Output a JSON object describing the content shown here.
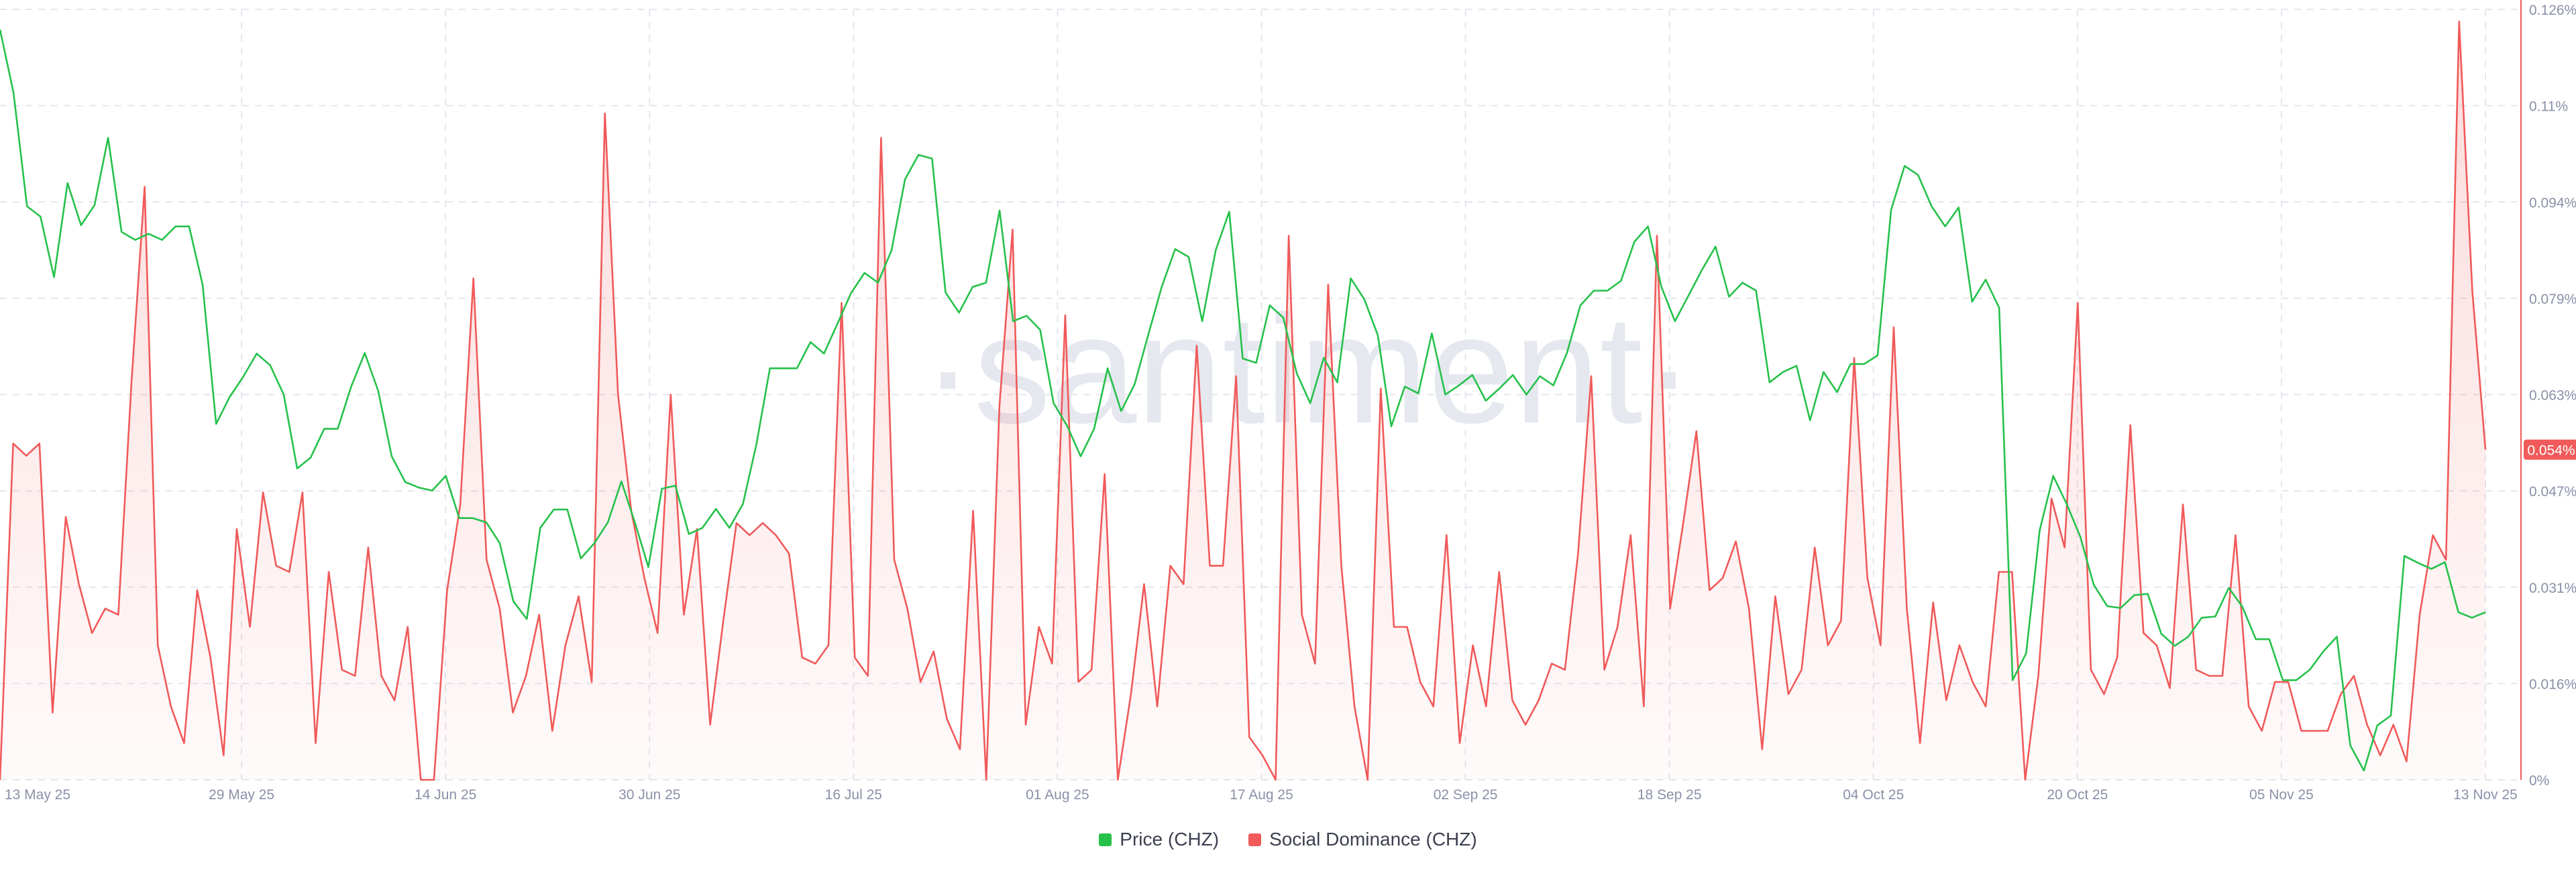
{
  "watermark": "·santiment·",
  "chart_data": {
    "type": "line",
    "x_start": "13 May 25",
    "x_end": "13 Nov 25",
    "x_tick_labels": [
      "13 May 25",
      "29 May 25",
      "14 Jun 25",
      "30 Jun 25",
      "16 Jul 25",
      "01 Aug 25",
      "17 Aug 25",
      "02 Sep 25",
      "18 Sep 25",
      "04 Oct 25",
      "20 Oct 25",
      "05 Nov 25",
      "13 Nov 25"
    ],
    "y_right": {
      "tick_labels": [
        "0%",
        "0.016%",
        "0.031%",
        "0.047%",
        "0.063%",
        "0.079%",
        "0.094%",
        "0.11%",
        "0.126%"
      ],
      "range": [
        0,
        0.126
      ],
      "unit": "%"
    },
    "current_value_label": "0.054%",
    "legend": [
      {
        "name": "Price (CHZ)",
        "color": "#26c14b"
      },
      {
        "name": "Social Dominance (CHZ)",
        "color": "#f05a5a"
      }
    ],
    "series": [
      {
        "name": "Price (CHZ)",
        "color": "#26c14b",
        "axis": "hidden",
        "values": [
          0.1227,
          0.1124,
          0.0938,
          0.0921,
          0.0822,
          0.0976,
          0.0907,
          0.094,
          0.105,
          0.0896,
          0.0883,
          0.0893,
          0.0883,
          0.0905,
          0.0905,
          0.081,
          0.0582,
          0.0626,
          0.0659,
          0.0697,
          0.0678,
          0.063,
          0.0509,
          0.0527,
          0.0574,
          0.0574,
          0.0643,
          0.0698,
          0.0636,
          0.0529,
          0.0487,
          0.0478,
          0.0473,
          0.0497,
          0.0428,
          0.0428,
          0.0421,
          0.0387,
          0.0292,
          0.0263,
          0.0412,
          0.0442,
          0.0442,
          0.0362,
          0.0387,
          0.0421,
          0.0488,
          0.0421,
          0.0348,
          0.0476,
          0.0481,
          0.0402,
          0.0412,
          0.0443,
          0.0412,
          0.0451,
          0.0549,
          0.0673,
          0.0673,
          0.0673,
          0.0716,
          0.0697,
          0.0746,
          0.0796,
          0.0829,
          0.0813,
          0.0866,
          0.0982,
          0.1022,
          0.1016,
          0.0797,
          0.0764,
          0.0806,
          0.0813,
          0.0931,
          0.075,
          0.0759,
          0.0736,
          0.0616,
          0.0579,
          0.0529,
          0.0574,
          0.0673,
          0.0603,
          0.0647,
          0.0727,
          0.0806,
          0.0868,
          0.0855,
          0.075,
          0.0866,
          0.0929,
          0.0689,
          0.0682,
          0.0776,
          0.0756,
          0.0665,
          0.0616,
          0.069,
          0.065,
          0.082,
          0.0786,
          0.0727,
          0.0578,
          0.0643,
          0.0632,
          0.073,
          0.063,
          0.0645,
          0.0662,
          0.062,
          0.064,
          0.0662,
          0.063,
          0.066,
          0.0645,
          0.0698,
          0.0776,
          0.08,
          0.08,
          0.0816,
          0.088,
          0.0905,
          0.0806,
          0.075,
          0.0792,
          0.0834,
          0.0872,
          0.079,
          0.0813,
          0.08,
          0.065,
          0.0667,
          0.0677,
          0.0588,
          0.0667,
          0.0634,
          0.068,
          0.068,
          0.0694,
          0.0932,
          0.1004,
          0.0989,
          0.0938,
          0.0905,
          0.0936,
          0.0782,
          0.0818,
          0.0772,
          0.0163,
          0.0207,
          0.0408,
          0.0497,
          0.0451,
          0.0398,
          0.0319,
          0.0284,
          0.0281,
          0.0302,
          0.0304,
          0.0239,
          0.0219,
          0.0234,
          0.0265,
          0.0267,
          0.0314,
          0.0283,
          0.023,
          0.023,
          0.0163,
          0.0163,
          0.018,
          0.021,
          0.0234,
          0.0056,
          0.0015,
          0.0089,
          0.0105,
          0.0366,
          0.0355,
          0.0345,
          0.0356,
          0.0274,
          0.0265,
          0.0274
        ]
      },
      {
        "name": "Social Dominance (CHZ)",
        "color": "#f05a5a",
        "axis": "right",
        "values": [
          0.0,
          0.055,
          0.053,
          0.055,
          0.011,
          0.043,
          0.032,
          0.024,
          0.028,
          0.027,
          0.065,
          0.097,
          0.022,
          0.012,
          0.006,
          0.031,
          0.02,
          0.004,
          0.041,
          0.025,
          0.047,
          0.035,
          0.034,
          0.047,
          0.006,
          0.034,
          0.018,
          0.017,
          0.038,
          0.017,
          0.013,
          0.025,
          0.0,
          0.0,
          0.031,
          0.045,
          0.082,
          0.036,
          0.028,
          0.011,
          0.017,
          0.027,
          0.008,
          0.022,
          0.03,
          0.016,
          0.109,
          0.063,
          0.044,
          0.033,
          0.024,
          0.063,
          0.027,
          0.041,
          0.009,
          0.026,
          0.042,
          0.04,
          0.042,
          0.04,
          0.037,
          0.02,
          0.019,
          0.022,
          0.078,
          0.02,
          0.017,
          0.105,
          0.036,
          0.028,
          0.016,
          0.021,
          0.01,
          0.005,
          0.044,
          0.0,
          0.061,
          0.09,
          0.009,
          0.025,
          0.019,
          0.076,
          0.016,
          0.018,
          0.05,
          0.0,
          0.014,
          0.032,
          0.012,
          0.035,
          0.032,
          0.071,
          0.035,
          0.035,
          0.066,
          0.007,
          0.004,
          0.0,
          0.089,
          0.027,
          0.019,
          0.081,
          0.035,
          0.012,
          0.0,
          0.064,
          0.025,
          0.025,
          0.016,
          0.012,
          0.04,
          0.006,
          0.022,
          0.012,
          0.034,
          0.013,
          0.009,
          0.013,
          0.019,
          0.018,
          0.037,
          0.066,
          0.018,
          0.025,
          0.04,
          0.012,
          0.089,
          0.028,
          0.042,
          0.057,
          0.031,
          0.033,
          0.039,
          0.028,
          0.005,
          0.03,
          0.014,
          0.018,
          0.038,
          0.022,
          0.026,
          0.069,
          0.033,
          0.022,
          0.074,
          0.028,
          0.006,
          0.029,
          0.013,
          0.022,
          0.016,
          0.012,
          0.034,
          0.034,
          0.0,
          0.017,
          0.046,
          0.038,
          0.078,
          0.018,
          0.014,
          0.02,
          0.058,
          0.024,
          0.022,
          0.015,
          0.045,
          0.018,
          0.017,
          0.017,
          0.04,
          0.012,
          0.008,
          0.016,
          0.016,
          0.008,
          0.008,
          0.008,
          0.014,
          0.017,
          0.009,
          0.004,
          0.009,
          0.003,
          0.027,
          0.04,
          0.036,
          0.124,
          0.08,
          0.054
        ]
      }
    ]
  }
}
